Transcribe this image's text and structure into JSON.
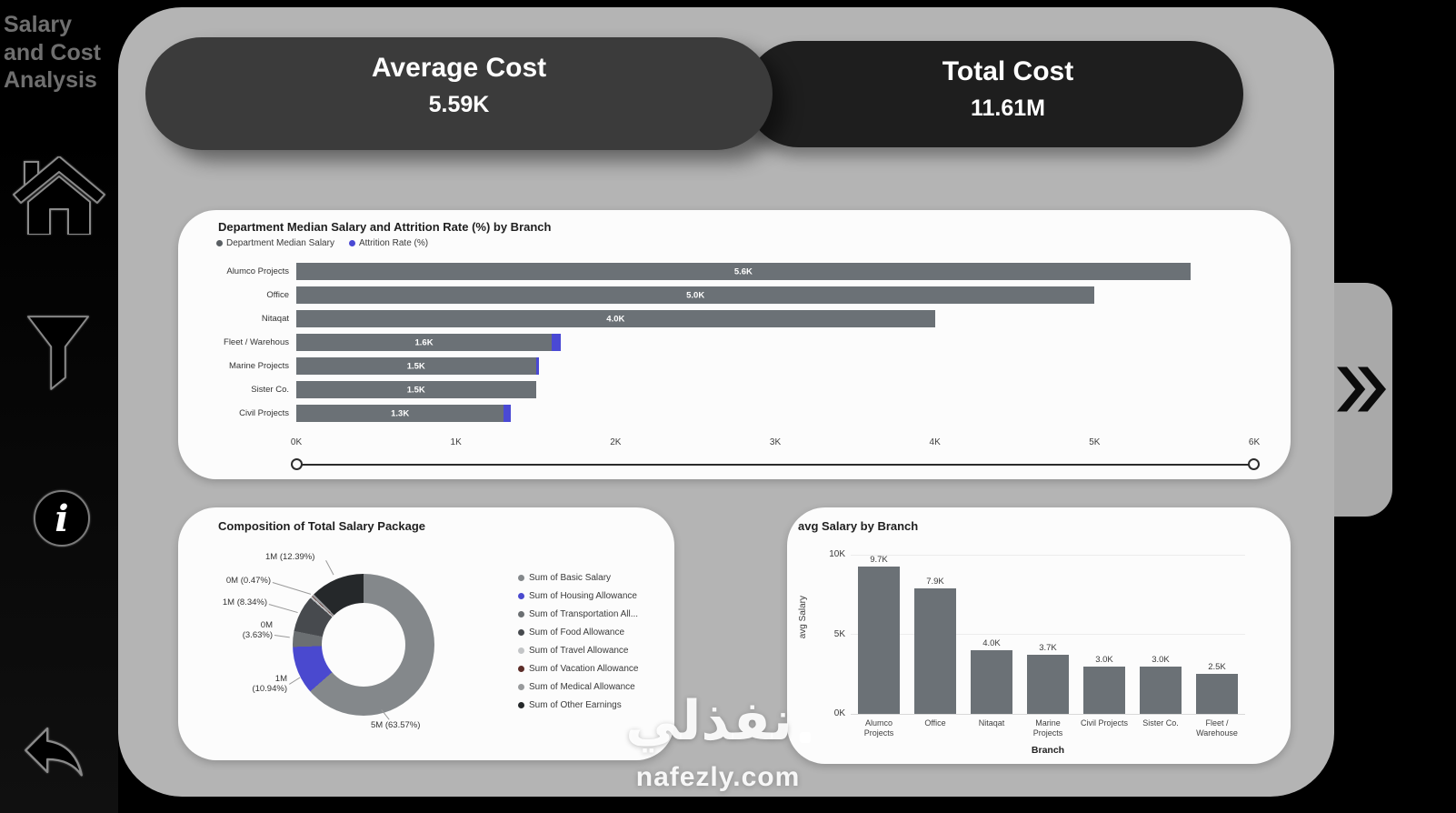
{
  "sidebar": {
    "title": "Salary and Cost Analysis",
    "icons": [
      "home-icon",
      "filter-icon",
      "info-icon",
      "back-arrow-icon"
    ]
  },
  "kpi": {
    "average": {
      "label": "Average Cost",
      "value": "5.59K"
    },
    "total": {
      "label": "Total Cost",
      "value": "11.61M"
    }
  },
  "nav": {
    "expand_icon": "double-chevron-right-icon"
  },
  "colors": {
    "bar_gray": "#6b7176",
    "accent_indigo": "#4a49d4",
    "panel_gray": "#b4b4b4",
    "pill_dark": "#1e1e1e",
    "pill_mid": "#3b3b3b"
  },
  "watermark": {
    "arabic": "نفذلي",
    "site": "nafezly.com"
  },
  "chart_data": [
    {
      "type": "bar",
      "orientation": "horizontal",
      "title": "Department Median Salary and Attrition Rate (%) by Branch",
      "legend": [
        {
          "label": "Department Median Salary",
          "color": "#5a5f63"
        },
        {
          "label": "Attrition Rate (%)",
          "color": "#4a49d4"
        }
      ],
      "categories": [
        "Alumco Projects",
        "Office",
        "Nitaqat",
        "Fleet / Warehous",
        "Marine Projects",
        "Sister Co.",
        "Civil Projects"
      ],
      "series": [
        {
          "name": "Department Median Salary",
          "values": [
            5600,
            5000,
            4000,
            1600,
            1500,
            1500,
            1300
          ],
          "labels": [
            "5.6K",
            "5.0K",
            "4.0K",
            "1.6K",
            "1.5K",
            "1.5K",
            "1.3K"
          ]
        },
        {
          "name": "Attrition Rate (%)",
          "overlay_units": [
            0,
            0,
            0,
            55,
            18,
            0,
            42
          ]
        }
      ],
      "x_ticks": [
        "0K",
        "1K",
        "2K",
        "3K",
        "4K",
        "5K",
        "6K"
      ],
      "xlim": [
        0,
        6000
      ],
      "grid": false,
      "legend_position": "top"
    },
    {
      "type": "pie",
      "title": "Composition of Total Salary Package",
      "legend_position": "right",
      "slices": [
        {
          "legend": "Sum of Basic Salary",
          "pct": 63.57,
          "label": "5M (63.57%)",
          "color": "#84888b"
        },
        {
          "legend": "Sum of Housing Allowance",
          "pct": 10.94,
          "label": "1M (10.94%)",
          "color": "#4a49cf"
        },
        {
          "legend": "Sum of Transportation All...",
          "pct": 3.63,
          "label": "0M (3.63%)",
          "color": "#6b6f72"
        },
        {
          "legend": "Sum of Food Allowance",
          "pct": 8.34,
          "label": "1M (8.34%)",
          "color": "#474a4e"
        },
        {
          "legend": "Sum of Travel Allowance",
          "pct": 0.47,
          "label": "0M (0.47%)",
          "color": "#c3c5c7"
        },
        {
          "legend": "Sum of Vacation Allowance",
          "pct": 0.13,
          "label": "",
          "color": "#5c2d28"
        },
        {
          "legend": "Sum of Medical Allowance",
          "pct": 0.53,
          "label": "",
          "color": "#989a9c"
        },
        {
          "legend": "Sum of Other Earnings",
          "pct": 12.39,
          "label": "1M (12.39%)",
          "color": "#25282a"
        }
      ]
    },
    {
      "type": "bar",
      "orientation": "vertical",
      "title": "avg Salary by Branch",
      "xlabel": "Branch",
      "ylabel": "avg Salary",
      "categories": [
        "Alumco Projects",
        "Office",
        "Nitaqat",
        "Marine Projects",
        "Civil Projects",
        "Sister Co.",
        "Fleet / Warehouse"
      ],
      "values": [
        9700,
        7900,
        4000,
        3700,
        3000,
        3000,
        2500
      ],
      "value_labels": [
        "9.7K",
        "7.9K",
        "4.0K",
        "3.7K",
        "3.0K",
        "3.0K",
        "2.5K"
      ],
      "y_ticks": [
        "10K",
        "5K",
        "0K"
      ],
      "ylim": [
        0,
        10000
      ],
      "grid": true
    }
  ]
}
